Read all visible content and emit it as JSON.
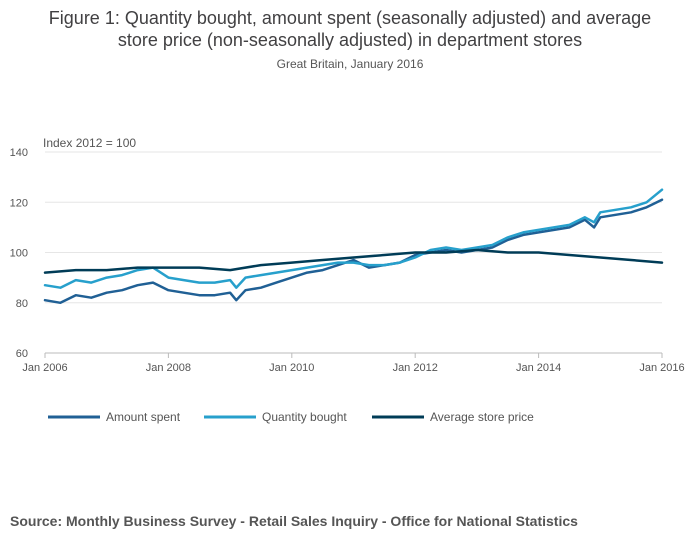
{
  "chart_data": {
    "type": "line",
    "title": "Figure 1: Quantity bought, amount spent (seasonally adjusted) and average\nstore price (non-seasonally adjusted) in department stores",
    "subtitle": "Great Britain, January 2016",
    "ylabel": "Index 2012 = 100",
    "ylim": [
      60,
      140
    ],
    "yticks": [
      60,
      80,
      100,
      120,
      140
    ],
    "xlim": [
      2006,
      2016
    ],
    "xticks": [
      {
        "x": 2006,
        "label": "Jan 2006"
      },
      {
        "x": 2008,
        "label": "Jan 2008"
      },
      {
        "x": 2010,
        "label": "Jan 2010"
      },
      {
        "x": 2012,
        "label": "Jan 2012"
      },
      {
        "x": 2014,
        "label": "Jan 2014"
      },
      {
        "x": 2016,
        "label": "Jan 2016"
      }
    ],
    "grid": true,
    "legend_position": "bottom",
    "series": [
      {
        "name": "Amount spent",
        "color": "#206095",
        "x": [
          2006.0,
          2006.25,
          2006.5,
          2006.75,
          2007.0,
          2007.25,
          2007.5,
          2007.75,
          2008.0,
          2008.25,
          2008.5,
          2008.75,
          2009.0,
          2009.1,
          2009.25,
          2009.5,
          2009.75,
          2010.0,
          2010.25,
          2010.5,
          2010.75,
          2011.0,
          2011.25,
          2011.5,
          2011.75,
          2012.0,
          2012.25,
          2012.5,
          2012.75,
          2013.0,
          2013.25,
          2013.5,
          2013.75,
          2014.0,
          2014.25,
          2014.5,
          2014.75,
          2014.9,
          2015.0,
          2015.25,
          2015.5,
          2015.75,
          2016.0
        ],
        "y": [
          81,
          80,
          83,
          82,
          84,
          85,
          87,
          88,
          85,
          84,
          83,
          83,
          84,
          81,
          85,
          86,
          88,
          90,
          92,
          93,
          95,
          97,
          94,
          95,
          96,
          99,
          100,
          101,
          100,
          101,
          102,
          105,
          107,
          108,
          109,
          110,
          113,
          110,
          114,
          115,
          116,
          118,
          121
        ]
      },
      {
        "name": "Quantity bought",
        "color": "#27a0cc",
        "x": [
          2006.0,
          2006.25,
          2006.5,
          2006.75,
          2007.0,
          2007.25,
          2007.5,
          2007.75,
          2008.0,
          2008.25,
          2008.5,
          2008.75,
          2009.0,
          2009.1,
          2009.25,
          2009.5,
          2009.75,
          2010.0,
          2010.25,
          2010.5,
          2010.75,
          2011.0,
          2011.25,
          2011.5,
          2011.75,
          2012.0,
          2012.25,
          2012.5,
          2012.75,
          2013.0,
          2013.25,
          2013.5,
          2013.75,
          2014.0,
          2014.25,
          2014.5,
          2014.75,
          2014.9,
          2015.0,
          2015.25,
          2015.5,
          2015.75,
          2016.0
        ],
        "y": [
          87,
          86,
          89,
          88,
          90,
          91,
          93,
          94,
          90,
          89,
          88,
          88,
          89,
          86,
          90,
          91,
          92,
          93,
          94,
          95,
          96,
          96,
          95,
          95,
          96,
          98,
          101,
          102,
          101,
          102,
          103,
          106,
          108,
          109,
          110,
          111,
          114,
          112,
          116,
          117,
          118,
          120,
          125
        ]
      },
      {
        "name": "Average store price",
        "color": "#003c57",
        "x": [
          2006.0,
          2006.5,
          2007.0,
          2007.5,
          2008.0,
          2008.5,
          2009.0,
          2009.5,
          2010.0,
          2010.5,
          2011.0,
          2011.5,
          2012.0,
          2012.5,
          2013.0,
          2013.5,
          2014.0,
          2014.5,
          2015.0,
          2015.5,
          2016.0
        ],
        "y": [
          92,
          93,
          93,
          94,
          94,
          94,
          93,
          95,
          96,
          97,
          98,
          99,
          100,
          100,
          101,
          100,
          100,
          99,
          98,
          97,
          96
        ]
      }
    ]
  },
  "source": "Source: Monthly Business Survey - Retail Sales Inquiry - Office for National Statistics"
}
